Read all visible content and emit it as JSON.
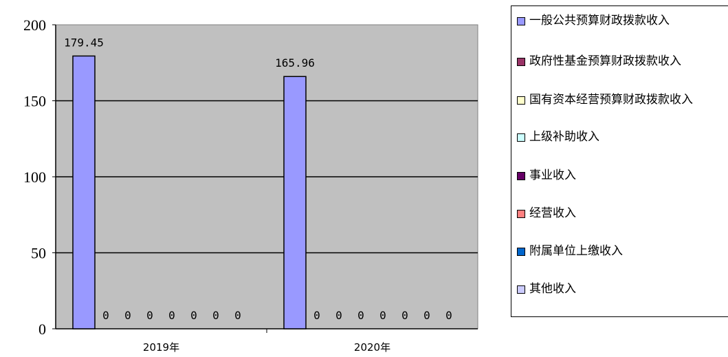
{
  "chart_data": {
    "type": "bar",
    "categories": [
      "2019年",
      "2020年"
    ],
    "series": [
      {
        "name": "一般公共预算财政拨款收入",
        "color": "#9999ff",
        "values": [
          179.45,
          165.96
        ]
      },
      {
        "name": "政府性基金预算财政拨款收入",
        "color": "#993366",
        "values": [
          0,
          0
        ]
      },
      {
        "name": "国有资本经营预算财政拨款收入",
        "color": "#ffffcc",
        "values": [
          0,
          0
        ]
      },
      {
        "name": "上级补助收入",
        "color": "#ccffff",
        "values": [
          0,
          0
        ]
      },
      {
        "name": "事业收入",
        "color": "#660066",
        "values": [
          0,
          0
        ]
      },
      {
        "name": "经营收入",
        "color": "#ff8080",
        "values": [
          0,
          0
        ]
      },
      {
        "name": "附属单位上缴收入",
        "color": "#0066cc",
        "values": [
          0,
          0
        ]
      },
      {
        "name": "其他收入",
        "color": "#ccccff",
        "values": [
          0,
          0
        ]
      }
    ],
    "data_labels": [
      [
        "179.45",
        "0",
        "0",
        "0",
        "0",
        "0",
        "0",
        "0"
      ],
      [
        "165.96",
        "0",
        "0",
        "0",
        "0",
        "0",
        "0",
        "0"
      ]
    ],
    "ylim": [
      0,
      200
    ],
    "yticks": [
      0,
      50,
      100,
      150,
      200
    ],
    "ytick_labels": [
      "0",
      "50",
      "100",
      "150",
      "200"
    ],
    "grid": true,
    "plot_background": "#c0c0c0",
    "legend_position": "right",
    "title": "",
    "xlabel": "",
    "ylabel": ""
  }
}
